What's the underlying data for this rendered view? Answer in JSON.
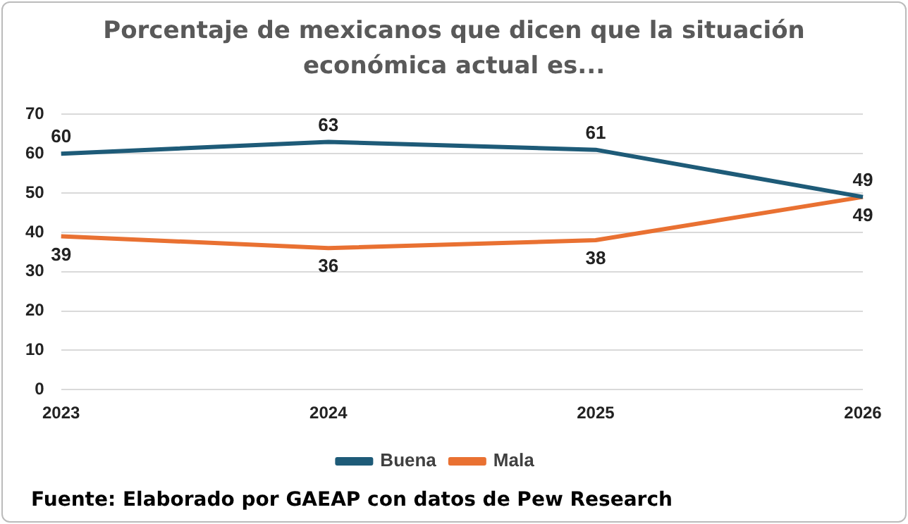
{
  "chart_data": {
    "type": "line",
    "title": "Porcentaje de mexicanos que dicen que la situación económica actual es...",
    "categories": [
      "2023",
      "2024",
      "2025",
      "2026"
    ],
    "series": [
      {
        "name": "Buena",
        "color": "#1e5b78",
        "values": [
          60,
          63,
          61,
          49
        ]
      },
      {
        "name": "Mala",
        "color": "#e97132",
        "values": [
          39,
          36,
          38,
          49
        ]
      }
    ],
    "ylim": [
      0,
      70
    ],
    "yticks": [
      0,
      10,
      20,
      30,
      40,
      50,
      60,
      70
    ],
    "grid": "y",
    "legend": "bottom",
    "marker": "none",
    "line_style": "solid",
    "data_labels": true,
    "annotations": [
      "Fuente: Elaborado por GAEAP con datos de Pew Research"
    ]
  }
}
